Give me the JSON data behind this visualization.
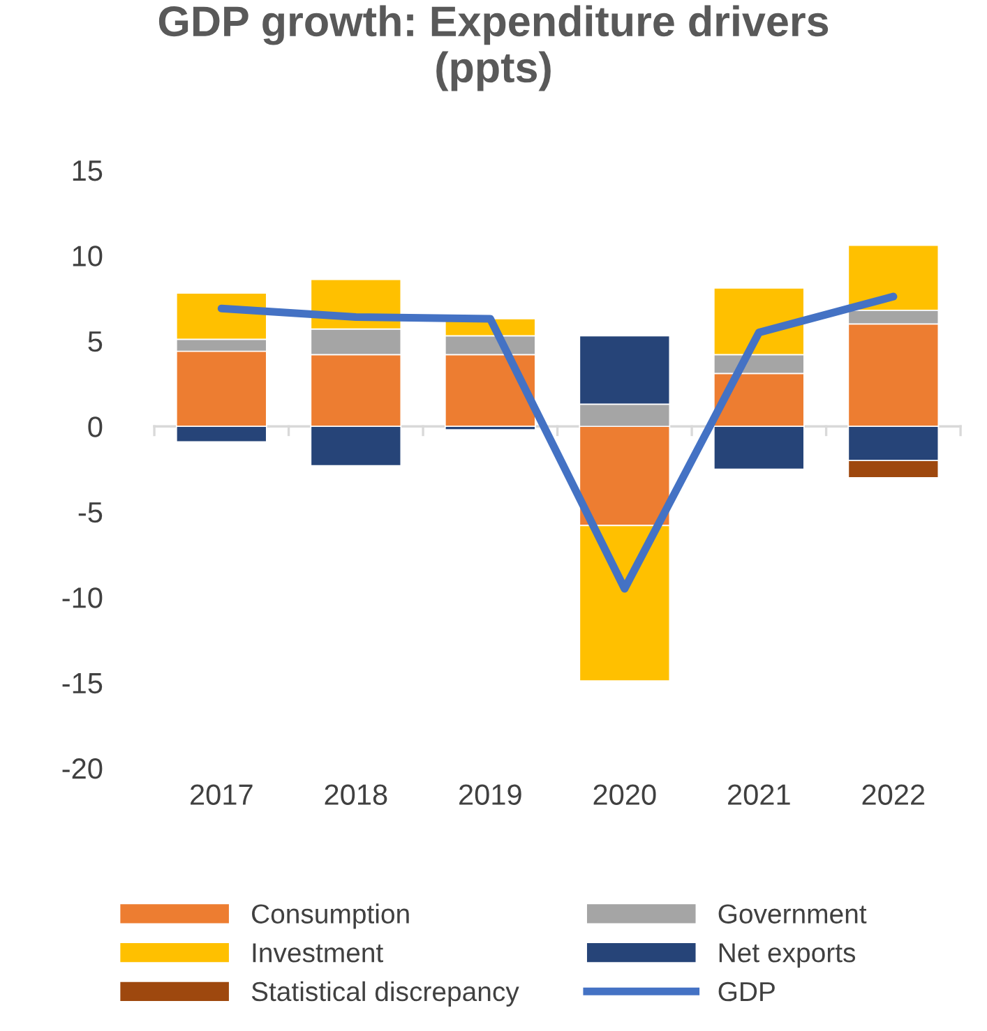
{
  "chart_data": {
    "type": "bar",
    "stacked": true,
    "title": "GDP growth: Expenditure drivers\n(ppts)",
    "categories": [
      "2017",
      "2018",
      "2019",
      "2020",
      "2021",
      "2022"
    ],
    "series": [
      {
        "name": "Consumption",
        "color": "#ed7d31",
        "values": [
          4.4,
          4.2,
          4.2,
          -5.8,
          3.1,
          6.0
        ]
      },
      {
        "name": "Government",
        "color": "#a5a5a5",
        "values": [
          0.7,
          1.5,
          1.1,
          1.3,
          1.1,
          0.8
        ]
      },
      {
        "name": "Investment",
        "color": "#ffc000",
        "values": [
          2.7,
          2.9,
          1.0,
          -9.1,
          3.9,
          3.8
        ]
      },
      {
        "name": "Net exports",
        "color": "#264478",
        "values": [
          -0.9,
          -2.3,
          -0.2,
          4.0,
          -2.5,
          -2.0
        ]
      },
      {
        "name": "Statistical discrepancy",
        "color": "#9e480e",
        "values": [
          null,
          null,
          null,
          null,
          null,
          -1.0
        ]
      },
      {
        "name": "GDP",
        "type": "line",
        "color": "#4472c4",
        "values": [
          6.9,
          6.4,
          6.3,
          -9.5,
          5.5,
          7.6
        ]
      }
    ],
    "ylim": [
      -20,
      15
    ],
    "yticks": [
      -20,
      -15,
      -10,
      -5,
      0,
      5,
      10,
      15
    ],
    "grid": false,
    "ref_lines": [
      {
        "axis": "y",
        "value": 0,
        "color": "#d9d9d9",
        "line_style": "solid"
      }
    ],
    "legend": "bottom",
    "marker": "none",
    "line_style": "solid"
  }
}
